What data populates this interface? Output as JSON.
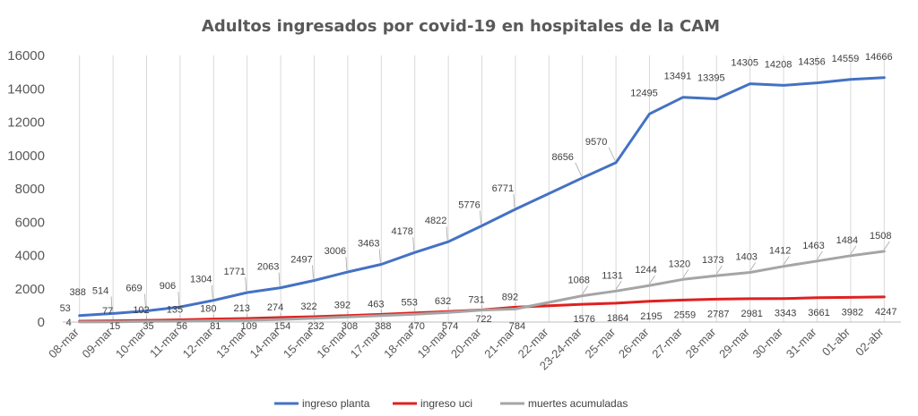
{
  "chart_data": {
    "type": "line",
    "title": "Adultos ingresados por covid-19 en hospitales de la CAM",
    "xlabel": "",
    "ylabel": "",
    "ylim": [
      0,
      16000
    ],
    "yticks": [
      "0",
      "2000",
      "4000",
      "6000",
      "8000",
      "10000",
      "12000",
      "14000",
      "16000"
    ],
    "grid": "vertical",
    "legend": "bottom",
    "categories": [
      "08-mar",
      "09-mar",
      "10-mar",
      "11-mar",
      "12-mar",
      "13-mar",
      "14-mar",
      "15-mar",
      "16-mar",
      "17-mar",
      "18-mar",
      "19-mar",
      "20-mar",
      "21-mar",
      "22-mar",
      "23-24-mar",
      "25-mar",
      "26-mar",
      "27-mar",
      "28-mar",
      "29-mar",
      "30-mar",
      "31-mar",
      "01-abr",
      "02-abr"
    ],
    "series": [
      {
        "name": "ingreso planta",
        "color": "#4472c4",
        "values": [
          388,
          514,
          669,
          906,
          1304,
          1771,
          2063,
          2497,
          3006,
          3463,
          4178,
          4822,
          5776,
          6771,
          null,
          8656,
          9570,
          12495,
          13491,
          13395,
          14305,
          14208,
          14356,
          14559,
          14666
        ]
      },
      {
        "name": "ingreso uci",
        "color": "#e02020",
        "values": [
          53,
          77,
          102,
          135,
          180,
          213,
          274,
          322,
          392,
          463,
          553,
          632,
          731,
          892,
          null,
          1068,
          1131,
          1244,
          1320,
          1373,
          1403,
          1412,
          1463,
          1484,
          1508
        ]
      },
      {
        "name": "muertes acumuladas",
        "color": "#a5a5a5",
        "values": [
          4,
          15,
          35,
          56,
          81,
          109,
          154,
          232,
          308,
          388,
          470,
          574,
          722,
          784,
          null,
          1576,
          1864,
          2195,
          2559,
          2787,
          2981,
          3343,
          3661,
          3982,
          4247
        ]
      }
    ]
  }
}
